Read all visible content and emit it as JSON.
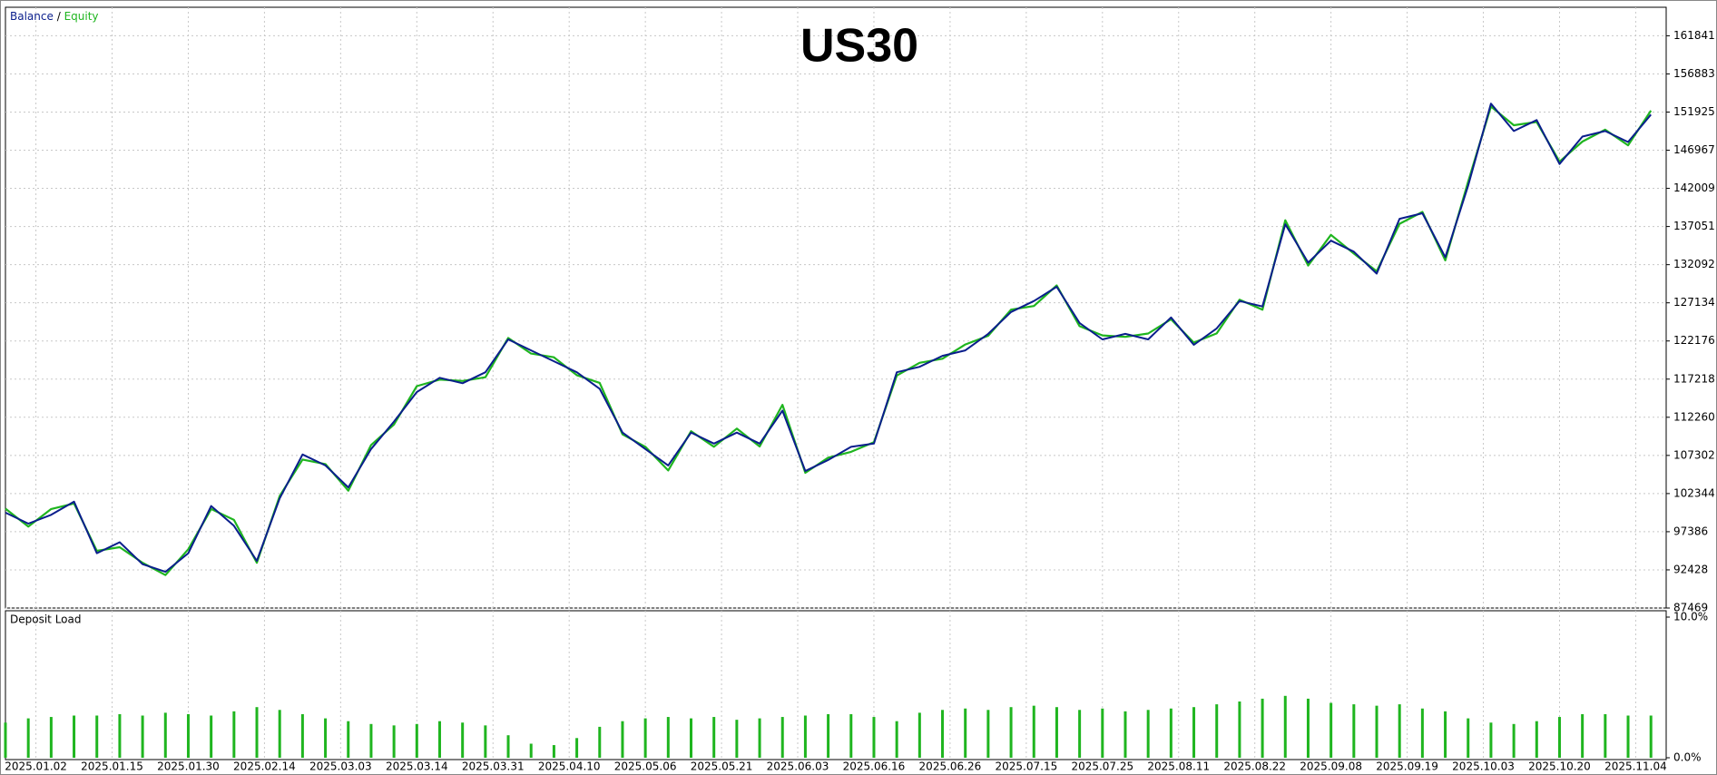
{
  "chart_data": [
    {
      "type": "line",
      "title": "US30",
      "legend_separator": "/",
      "grid": true,
      "xlim": [
        0,
        218
      ],
      "xticks": [
        {
          "value": 4,
          "label": "2025.01.02"
        },
        {
          "value": 14,
          "label": "2025.01.15"
        },
        {
          "value": 24,
          "label": "2025.01.30"
        },
        {
          "value": 34,
          "label": "2025.02.14"
        },
        {
          "value": 44,
          "label": "2025.03.03"
        },
        {
          "value": 54,
          "label": "2025.03.14"
        },
        {
          "value": 64,
          "label": "2025.03.31"
        },
        {
          "value": 74,
          "label": "2025.04.10"
        },
        {
          "value": 84,
          "label": "2025.05.06"
        },
        {
          "value": 94,
          "label": "2025.05.21"
        },
        {
          "value": 104,
          "label": "2025.06.03"
        },
        {
          "value": 114,
          "label": "2025.06.16"
        },
        {
          "value": 124,
          "label": "2025.06.26"
        },
        {
          "value": 134,
          "label": "2025.07.15"
        },
        {
          "value": 144,
          "label": "2025.07.25"
        },
        {
          "value": 154,
          "label": "2025.08.11"
        },
        {
          "value": 164,
          "label": "2025.08.22"
        },
        {
          "value": 174,
          "label": "2025.09.08"
        },
        {
          "value": 184,
          "label": "2025.09.19"
        },
        {
          "value": 194,
          "label": "2025.10.03"
        },
        {
          "value": 204,
          "label": "2025.10.20"
        },
        {
          "value": 214,
          "label": "2025.11.04"
        }
      ],
      "ylim": [
        87469,
        165545
      ],
      "yticks": [
        87469,
        92428,
        97386,
        102344,
        107302,
        112260,
        117218,
        122176,
        127134,
        132092,
        137051,
        142009,
        146967,
        151925,
        156883,
        161841
      ],
      "x": [
        0,
        3,
        6,
        9,
        12,
        15,
        18,
        21,
        24,
        27,
        30,
        33,
        36,
        39,
        42,
        45,
        48,
        51,
        54,
        57,
        60,
        63,
        66,
        69,
        72,
        75,
        78,
        81,
        84,
        87,
        90,
        93,
        96,
        99,
        102,
        105,
        108,
        111,
        114,
        117,
        120,
        123,
        126,
        129,
        132,
        135,
        138,
        141,
        144,
        147,
        150,
        153,
        156,
        159,
        162,
        165,
        168,
        171,
        174,
        177,
        180,
        183,
        186,
        189,
        192,
        195,
        198,
        201,
        204,
        207,
        210,
        213,
        216
      ],
      "series": [
        {
          "name": "Equity",
          "color": "#1fb51f",
          "values": [
            100387,
            98062,
            100342,
            101052,
            94894,
            95369,
            93349,
            91752,
            95114,
            100342,
            98917,
            93357,
            102019,
            106769,
            106174,
            102724,
            108652,
            111314,
            116302,
            117154,
            116982,
            117457,
            122562,
            120537,
            120052,
            117727,
            116729,
            110029,
            108432,
            105344,
            110449,
            108424,
            110789,
            108464,
            113879,
            105042,
            107007,
            107767,
            109024,
            117687,
            119339,
            119864,
            121717,
            122854,
            126244,
            126719,
            129402,
            124099,
            122902,
            122714,
            123142,
            124992,
            121969,
            123157,
            127549,
            126237,
            137864,
            131977,
            135967,
            133542,
            131232,
            137407,
            138949,
            132649,
            142852,
            152639,
            150217,
            150642,
            145482,
            148094,
            149637,
            147612,
            152114
          ]
        },
        {
          "name": "Balance",
          "color": "#0a1e8c",
          "values": [
            99867,
            98442,
            99582,
            101292,
            94594,
            96019,
            93169,
            92172,
            94594,
            100722,
            98157,
            93597,
            101719,
            107419,
            105994,
            103144,
            108132,
            111694,
            115542,
            117394,
            116682,
            118107,
            122382,
            120957,
            119532,
            118107,
            115969,
            110269,
            108132,
            105994,
            110269,
            108844,
            110269,
            108844,
            113119,
            105282,
            106707,
            108417,
            108844,
            118107,
            118819,
            120244,
            120957,
            123094,
            125944,
            127369,
            129222,
            124519,
            122382,
            123094,
            122382,
            125232,
            121669,
            123807,
            127369,
            126657,
            137344,
            132357,
            135207,
            133782,
            130932,
            138057,
            138769,
            133069,
            142332,
            153019,
            149457,
            150882,
            145182,
            148744,
            149457,
            148032,
            151594
          ]
        }
      ]
    },
    {
      "type": "bar",
      "title": "Deposit Load",
      "color": "#1fb51f",
      "grid": true,
      "xlim": [
        0,
        218
      ],
      "x": [
        0,
        3,
        6,
        9,
        12,
        15,
        18,
        21,
        24,
        27,
        30,
        33,
        36,
        39,
        42,
        45,
        48,
        51,
        54,
        57,
        60,
        63,
        66,
        69,
        72,
        75,
        78,
        81,
        84,
        87,
        90,
        93,
        96,
        99,
        102,
        105,
        108,
        111,
        114,
        117,
        120,
        123,
        126,
        129,
        132,
        135,
        138,
        141,
        144,
        147,
        150,
        153,
        156,
        159,
        162,
        165,
        168,
        171,
        174,
        177,
        180,
        183,
        186,
        189,
        192,
        195,
        198,
        201,
        204,
        207,
        210,
        213,
        216
      ],
      "values": [
        2.5,
        2.8,
        2.9,
        3.0,
        3.0,
        3.1,
        3.0,
        3.2,
        3.1,
        3.0,
        3.3,
        3.6,
        3.4,
        3.1,
        2.8,
        2.6,
        2.4,
        2.3,
        2.4,
        2.6,
        2.5,
        2.3,
        1.6,
        1.0,
        0.9,
        1.4,
        2.2,
        2.6,
        2.8,
        2.9,
        2.8,
        2.9,
        2.7,
        2.8,
        2.9,
        3.0,
        3.1,
        3.1,
        2.9,
        2.6,
        3.2,
        3.4,
        3.5,
        3.4,
        3.6,
        3.7,
        3.6,
        3.4,
        3.5,
        3.3,
        3.4,
        3.5,
        3.6,
        3.8,
        4.0,
        4.2,
        4.4,
        4.2,
        3.9,
        3.8,
        3.7,
        3.8,
        3.5,
        3.3,
        2.8,
        2.5,
        2.4,
        2.6,
        2.9,
        3.1,
        3.1,
        3.0,
        3.0
      ],
      "ylim": [
        0,
        10
      ],
      "yticks": [
        {
          "value": 0,
          "label": "0.0%"
        },
        {
          "value": 10,
          "label": "10.0%"
        }
      ]
    }
  ]
}
